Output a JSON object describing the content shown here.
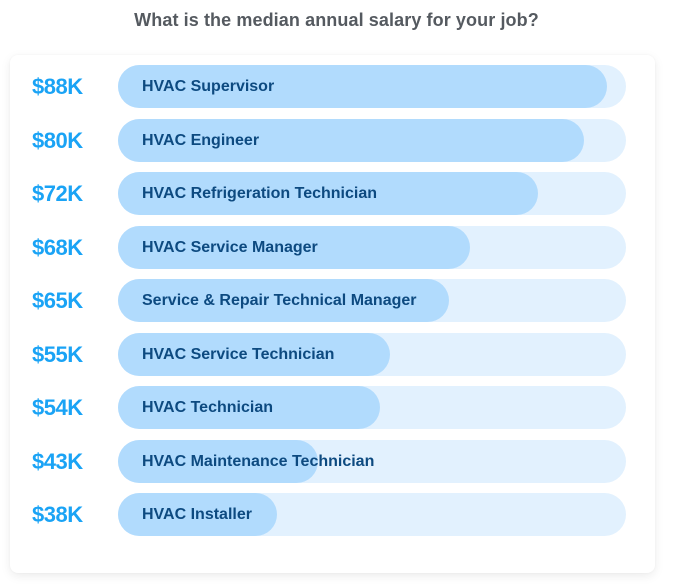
{
  "title": "What is the median annual salary for your job?",
  "colors": {
    "value_text": "#1aa3f5",
    "label_text": "#0d4a80",
    "bar_fill": "#b1dbfd",
    "bar_track": "#e2f1fe",
    "title_text": "#555a60"
  },
  "rows": [
    {
      "value": "$88K",
      "label": "HVAC Supervisor",
      "pct": 96.3
    },
    {
      "value": "$80K",
      "label": "HVAC Engineer",
      "pct": 91.7
    },
    {
      "value": "$72K",
      "label": "HVAC Refrigeration Technician",
      "pct": 82.7
    },
    {
      "value": "$68K",
      "label": "HVAC Service Manager",
      "pct": 69.3
    },
    {
      "value": "$65K",
      "label": "Service & Repair Technical Manager",
      "pct": 65.2
    },
    {
      "value": "$55K",
      "label": "HVAC Service Technician",
      "pct": 53.5
    },
    {
      "value": "$54K",
      "label": "HVAC Technician",
      "pct": 51.6
    },
    {
      "value": "$43K",
      "label": "HVAC Maintenance Technician",
      "pct": 39.4
    },
    {
      "value": "$38K",
      "label": "HVAC Installer",
      "pct": 31.3
    }
  ],
  "chart_data": {
    "type": "bar",
    "orientation": "horizontal",
    "title": "What is the median annual salary for your job?",
    "xlabel": "",
    "ylabel": "",
    "categories": [
      "HVAC Supervisor",
      "HVAC Engineer",
      "HVAC Refrigeration Technician",
      "HVAC Service Manager",
      "Service & Repair Technical Manager",
      "HVAC Service Technician",
      "HVAC Technician",
      "HVAC Maintenance Technician",
      "HVAC Installer"
    ],
    "values": [
      88000,
      80000,
      72000,
      68000,
      65000,
      55000,
      54000,
      43000,
      38000
    ],
    "value_labels": [
      "$88K",
      "$80K",
      "$72K",
      "$68K",
      "$65K",
      "$55K",
      "$54K",
      "$43K",
      "$38K"
    ],
    "units": "USD per year",
    "grid": false,
    "legend": null
  }
}
